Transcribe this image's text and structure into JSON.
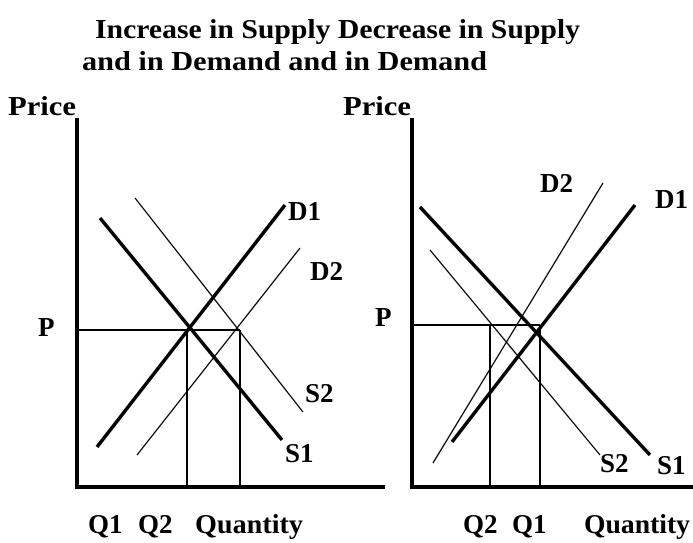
{
  "title": {
    "line1": "Increase in Supply  Decrease in Supply",
    "line2": "and in Demand  and in Demand"
  },
  "panels": [
    {
      "y_axis": "Price",
      "x_axis": "Quantity",
      "price": "P",
      "q_left": "Q1",
      "q_right": "Q2",
      "lines": {
        "thick_up": "D1",
        "thin_up": "D2",
        "thin_down": "S2",
        "thick_down": "S1"
      }
    },
    {
      "y_axis": "Price",
      "x_axis": "Quantity",
      "price": "P",
      "q_left": "Q2",
      "q_right": "Q1",
      "lines": {
        "thin_up": "D2",
        "thick_up": "D1",
        "thin_down": "S2",
        "thick_down": "S1"
      }
    }
  ]
}
